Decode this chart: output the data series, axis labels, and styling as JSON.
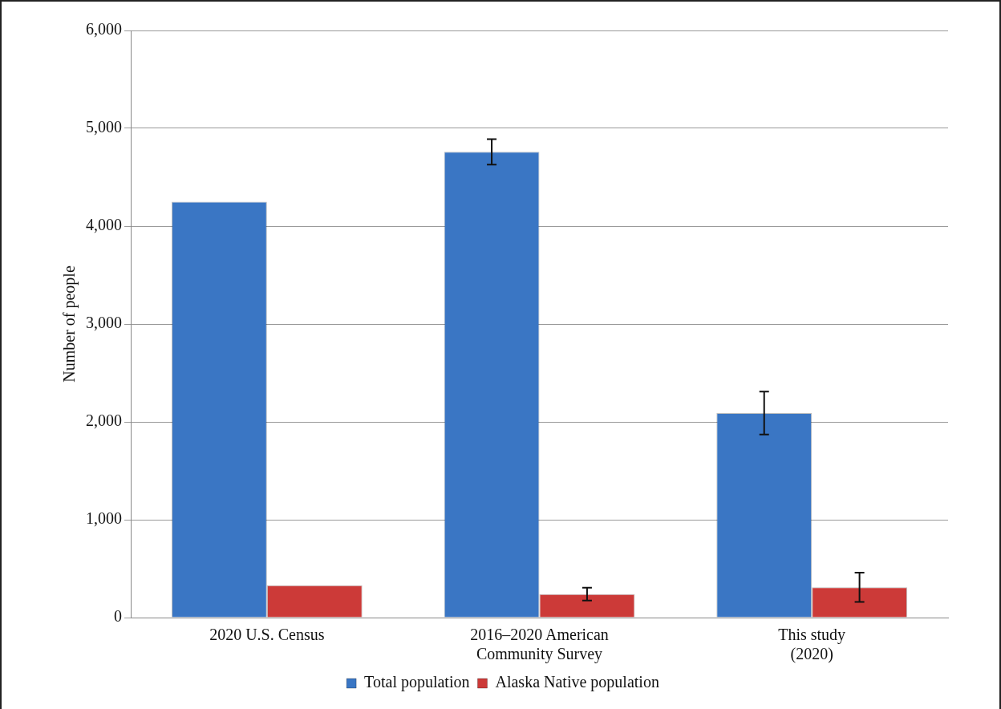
{
  "chart_data": {
    "type": "bar",
    "categories": [
      "2020 U.S. Census",
      "2016–2020 American Community Survey",
      "This study (2020)"
    ],
    "series": [
      {
        "name": "Total population",
        "color": "#3a76c4",
        "values": [
          4250,
          4760,
          2090
        ],
        "errors": [
          null,
          130,
          220
        ]
      },
      {
        "name": "Alaska Native population",
        "color": "#cc3a38",
        "values": [
          330,
          240,
          310
        ],
        "errors": [
          null,
          65,
          150
        ]
      }
    ],
    "ylabel": "Number of people",
    "ylim": [
      0,
      6000
    ],
    "yticks": [
      0,
      {
        "value": 1000,
        "label": "1,000"
      },
      {
        "value": 2000,
        "label": "2,000"
      },
      {
        "value": 3000,
        "label": "3,000"
      },
      {
        "value": 4000,
        "label": "4,000"
      },
      {
        "value": 5000,
        "label": "5,000"
      },
      {
        "value": 6000,
        "label": "6,000"
      }
    ],
    "grid": "y",
    "legend": "bottom"
  }
}
